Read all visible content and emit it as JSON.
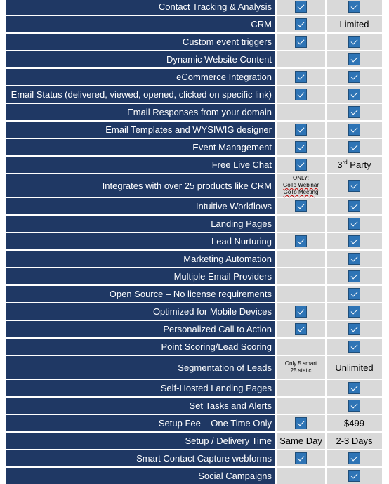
{
  "table": {
    "rows": [
      {
        "feature": "Contact Tracking & Analysis",
        "a": {
          "check": true
        },
        "b": {
          "check": true
        }
      },
      {
        "feature": "CRM",
        "a": {
          "check": true
        },
        "b": {
          "text": "Limited"
        }
      },
      {
        "feature": "Custom event triggers",
        "a": {
          "check": true
        },
        "b": {
          "check": true
        }
      },
      {
        "feature": "Dynamic Website Content",
        "a": {},
        "b": {
          "check": true
        }
      },
      {
        "feature": "eCommerce Integration",
        "a": {
          "check": true
        },
        "b": {
          "check": true
        }
      },
      {
        "feature": "Email Status (delivered, viewed, opened, clicked on specific link)",
        "a": {
          "check": true
        },
        "b": {
          "check": true
        }
      },
      {
        "feature": "Email Responses from your domain",
        "a": {},
        "b": {
          "check": true
        }
      },
      {
        "feature": "Email Templates and WYSIWIG designer",
        "a": {
          "check": true
        },
        "b": {
          "check": true
        }
      },
      {
        "feature": "Event Management",
        "a": {
          "check": true
        },
        "b": {
          "check": true
        }
      },
      {
        "feature": "Free Live Chat",
        "a": {
          "check": true
        },
        "b": {
          "text": "3",
          "sup": "rd",
          "suffix": " Party"
        }
      },
      {
        "feature": "Integrates with over 25 products like CRM",
        "a": {
          "lines": [
            "ONLY:",
            "GoTo Webinar",
            "GoTo Meeting"
          ]
        },
        "b": {
          "check": true
        }
      },
      {
        "feature": "Intuitive Workflows",
        "a": {
          "check": true
        },
        "b": {
          "check": true
        }
      },
      {
        "feature": "Landing  Pages",
        "a": {},
        "b": {
          "check": true
        }
      },
      {
        "feature": "Lead Nurturing",
        "a": {
          "check": true
        },
        "b": {
          "check": true
        }
      },
      {
        "feature": "Marketing Automation",
        "a": {},
        "b": {
          "check": true
        }
      },
      {
        "feature": "Multiple Email Providers",
        "a": {},
        "b": {
          "check": true
        }
      },
      {
        "feature": "Open Source – No license requirements",
        "a": {},
        "b": {
          "check": true
        }
      },
      {
        "feature": "Optimized for Mobile Devices",
        "a": {
          "check": true
        },
        "b": {
          "check": true
        }
      },
      {
        "feature": "Personalized Call to Action",
        "a": {
          "check": true
        },
        "b": {
          "check": true
        }
      },
      {
        "feature": "Point Scoring/Lead Scoring",
        "a": {},
        "b": {
          "check": true
        }
      },
      {
        "feature": "Segmentation of Leads",
        "a": {
          "lines": [
            "Only 5 smart",
            "25 static"
          ]
        },
        "b": {
          "text": "Unlimited"
        }
      },
      {
        "feature": "Self-Hosted Landing Pages",
        "a": {},
        "b": {
          "check": true
        }
      },
      {
        "feature": "Set Tasks and Alerts",
        "a": {},
        "b": {
          "check": true
        }
      },
      {
        "feature": "Setup Fee – One Time Only",
        "a": {
          "check": true
        },
        "b": {
          "text": "$499"
        }
      },
      {
        "feature": "Setup / Delivery Time",
        "a": {
          "text": "Same Day"
        },
        "b": {
          "text": "2-3 Days"
        }
      },
      {
        "feature": "Smart Contact Capture webforms",
        "a": {
          "check": true
        },
        "b": {
          "check": true
        }
      },
      {
        "feature": "Social Campaigns",
        "a": {},
        "b": {
          "check": true
        }
      }
    ]
  },
  "colors": {
    "feature_bg": "#1f3864",
    "feature_text": "#ffffff",
    "cell_bg": "#d9d9d9",
    "check": "#2e74b5"
  },
  "icons": {
    "check": "checkmark-icon"
  }
}
